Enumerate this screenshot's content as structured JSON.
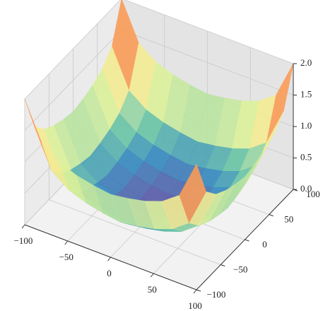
{
  "chart_data": {
    "type": "surface3d",
    "x": [
      -100,
      -80,
      -60,
      -40,
      -20,
      0,
      20,
      40,
      60,
      80,
      100
    ],
    "y": [
      -100,
      -80,
      -60,
      -40,
      -20,
      0,
      20,
      40,
      60,
      80,
      100
    ],
    "z": [
      [
        2,
        1.4,
        1.2,
        1.1,
        1.04,
        1,
        1.04,
        1.1,
        1.2,
        1.4,
        2
      ],
      [
        1.4,
        0.8,
        0.6,
        0.5,
        0.44,
        0.4,
        0.44,
        0.5,
        0.6,
        0.8,
        1.4
      ],
      [
        1.2,
        0.6,
        0.4,
        0.3,
        0.24,
        0.2,
        0.24,
        0.3,
        0.4,
        0.6,
        1.2
      ],
      [
        1.1,
        0.5,
        0.3,
        0.2,
        0.14,
        0.1,
        0.14,
        0.2,
        0.3,
        0.5,
        1.1
      ],
      [
        1.04,
        0.44,
        0.24,
        0.14,
        0.08,
        0.04,
        0.08,
        0.14,
        0.24,
        0.44,
        1.04
      ],
      [
        1,
        0.4,
        0.2,
        0.1,
        0.04,
        0,
        0.04,
        0.1,
        0.2,
        0.4,
        1
      ],
      [
        1.04,
        0.44,
        0.24,
        0.14,
        0.08,
        0.04,
        0.08,
        0.14,
        0.24,
        0.44,
        1.04
      ],
      [
        1.1,
        0.5,
        0.3,
        0.2,
        0.14,
        0.1,
        0.14,
        0.2,
        0.3,
        0.5,
        1.1
      ],
      [
        1.2,
        0.6,
        0.4,
        0.3,
        0.24,
        0.2,
        0.24,
        0.3,
        0.4,
        0.6,
        1.2
      ],
      [
        1.4,
        0.8,
        0.6,
        0.5,
        0.44,
        0.4,
        0.44,
        0.5,
        0.6,
        0.8,
        1.4
      ],
      [
        2,
        1.4,
        1.2,
        1.1,
        1.04,
        1,
        1.04,
        1.1,
        1.2,
        1.4,
        2
      ]
    ],
    "colormap": [
      "#5e4fa2",
      "#3288bd",
      "#66c2a5",
      "#abdda4",
      "#e6f598",
      "#fee08b",
      "#fdae61",
      "#f46d43",
      "#d53e4f",
      "#9e0142"
    ],
    "xlim": [
      -100,
      100
    ],
    "ylim": [
      -100,
      100
    ],
    "zlim": [
      0,
      2
    ],
    "xticks": [
      {
        "value": -100,
        "label": "−100"
      },
      {
        "value": -50,
        "label": "−50"
      },
      0,
      50,
      100
    ],
    "yticks": [
      {
        "value": -100,
        "label": "−100"
      },
      {
        "value": -50,
        "label": "−50"
      },
      0,
      50,
      100
    ],
    "zticks": [
      {
        "value": 0,
        "label": "0.0"
      },
      0.5,
      {
        "value": 1,
        "label": "1.0"
      },
      1.5,
      {
        "value": 2,
        "label": "2.0"
      }
    ],
    "grid": true
  }
}
